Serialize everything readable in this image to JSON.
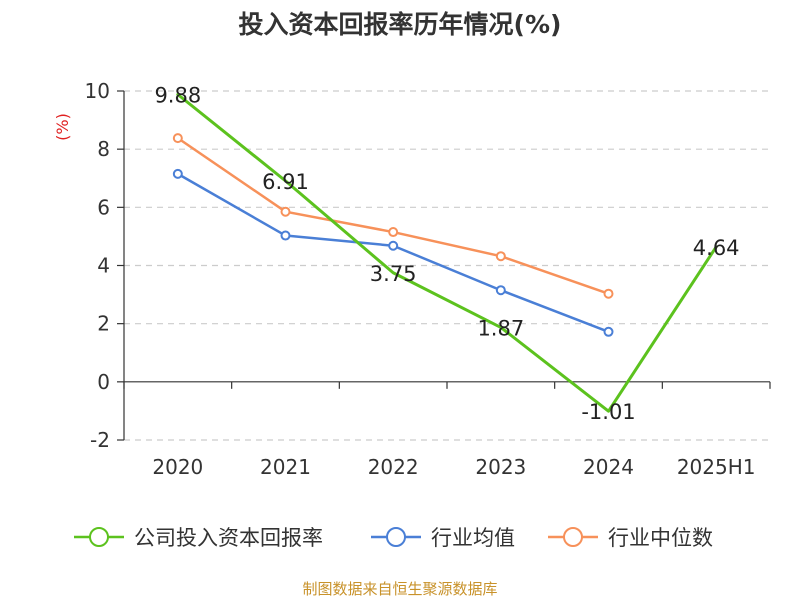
{
  "chart_data": {
    "type": "line",
    "title": "投入资本回报率历年情况(%)",
    "ylabel": "(%)",
    "xlabel": "",
    "categories": [
      "2020",
      "2021",
      "2022",
      "2023",
      "2024",
      "2025H1"
    ],
    "ylim": [
      -2,
      10
    ],
    "yticks": [
      -2,
      0,
      2,
      4,
      6,
      8,
      10
    ],
    "grid": true,
    "legend_position": "bottom",
    "series": [
      {
        "name": "公司投入资本回报率",
        "color": "#5cc21e",
        "values": [
          9.88,
          6.91,
          3.75,
          1.87,
          -1.01,
          4.64
        ],
        "labels": [
          "9.88",
          "6.91",
          "3.75",
          "1.87",
          "-1.01",
          "4.64"
        ],
        "markers": false
      },
      {
        "name": "行业均值",
        "color": "#4a7fd6",
        "values": [
          7.15,
          5.03,
          4.68,
          3.15,
          1.72,
          null
        ],
        "markers": true
      },
      {
        "name": "行业中位数",
        "color": "#f7915a",
        "values": [
          8.38,
          5.85,
          5.15,
          4.32,
          3.03,
          null
        ],
        "markers": true
      }
    ],
    "source": "制图数据来自恒生聚源数据库"
  }
}
